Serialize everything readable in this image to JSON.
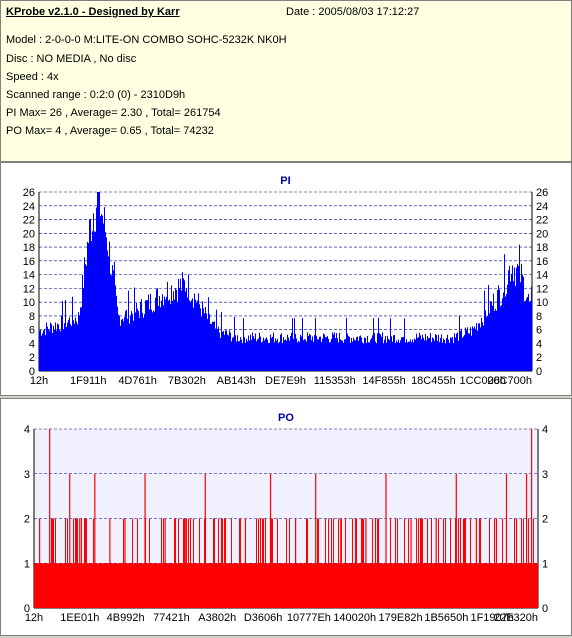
{
  "info": {
    "title": "KProbe v2.1.0 - Designed by Karr",
    "date": "Date : 2005/08/03 17:12:27",
    "model": "Model : 2-0-0-0 M:LITE-ON COMBO SOHC-5232K NK0H",
    "disc": "Disc : NO MEDIA , No disc",
    "speed": "Speed : 4x",
    "range": "Scanned range : 0:2:0 (0) - 2310D9h",
    "pi": "PI Max= 26 , Average= 2.30 , Total= 261754",
    "po": "PO Max= 4 , Average= 0.65 , Total= 74232"
  },
  "colors": {
    "pi": "#0000ff",
    "po": "#ff0000",
    "background": "#ffffff",
    "po_background": "#f0f0ff",
    "grid": "#0000a0"
  },
  "chart_data": [
    {
      "type": "bar",
      "title": "PI",
      "ylim": [
        0,
        26
      ],
      "yticks": [
        "0",
        "2",
        "4",
        "6",
        "8",
        "10",
        "12",
        "14",
        "16",
        "18",
        "20",
        "22",
        "24",
        "26"
      ],
      "xticks": [
        "12h",
        "1F911h",
        "4D761h",
        "7B302h",
        "AB143h",
        "DE7E9h",
        "115353h",
        "14F855h",
        "18C455h",
        "1CC008h",
        "20C700h"
      ],
      "grid": true,
      "profile": [
        {
          "x": 0,
          "y": 6
        },
        {
          "x": 4,
          "y": 7
        },
        {
          "x": 8,
          "y": 8
        },
        {
          "x": 10,
          "y": 20
        },
        {
          "x": 11,
          "y": 24
        },
        {
          "x": 12,
          "y": 26
        },
        {
          "x": 14,
          "y": 19
        },
        {
          "x": 16,
          "y": 8
        },
        {
          "x": 20,
          "y": 9
        },
        {
          "x": 26,
          "y": 12
        },
        {
          "x": 30,
          "y": 13
        },
        {
          "x": 34,
          "y": 8
        },
        {
          "x": 36,
          "y": 6
        },
        {
          "x": 40,
          "y": 5
        },
        {
          "x": 84,
          "y": 5
        },
        {
          "x": 88,
          "y": 6
        },
        {
          "x": 91,
          "y": 9
        },
        {
          "x": 94,
          "y": 12
        },
        {
          "x": 96,
          "y": 16
        },
        {
          "x": 98,
          "y": 14
        },
        {
          "x": 100,
          "y": 9
        }
      ]
    },
    {
      "type": "bar",
      "title": "PO",
      "ylim": [
        0,
        4
      ],
      "yticks": [
        "0",
        "1",
        "2",
        "3",
        "4"
      ],
      "xticks": [
        "12h",
        "1EE01h",
        "4B992h",
        "77421h",
        "A3802h",
        "D3606h",
        "10777Eh",
        "140020h",
        "179E82h",
        "1B5650h",
        "1F1907h",
        "22E320h"
      ],
      "grid": true,
      "baseline": 1,
      "spikes": [
        {
          "x": 1,
          "y": 2
        },
        {
          "x": 3,
          "y": 4
        },
        {
          "x": 7,
          "y": 3
        },
        {
          "x": 9,
          "y": 2
        },
        {
          "x": 12,
          "y": 3
        },
        {
          "x": 15,
          "y": 2
        },
        {
          "x": 18,
          "y": 2
        },
        {
          "x": 22,
          "y": 3
        },
        {
          "x": 26,
          "y": 2
        },
        {
          "x": 30,
          "y": 2
        },
        {
          "x": 34,
          "y": 3
        },
        {
          "x": 38,
          "y": 2
        },
        {
          "x": 42,
          "y": 2
        },
        {
          "x": 47,
          "y": 3
        },
        {
          "x": 52,
          "y": 2
        },
        {
          "x": 56,
          "y": 3
        },
        {
          "x": 61,
          "y": 2
        },
        {
          "x": 66,
          "y": 2
        },
        {
          "x": 70,
          "y": 3
        },
        {
          "x": 75,
          "y": 2
        },
        {
          "x": 80,
          "y": 2
        },
        {
          "x": 84,
          "y": 3
        },
        {
          "x": 88,
          "y": 2
        },
        {
          "x": 92,
          "y": 2
        },
        {
          "x": 94,
          "y": 3
        },
        {
          "x": 96,
          "y": 2
        },
        {
          "x": 98,
          "y": 3
        },
        {
          "x": 99,
          "y": 4
        }
      ]
    }
  ]
}
